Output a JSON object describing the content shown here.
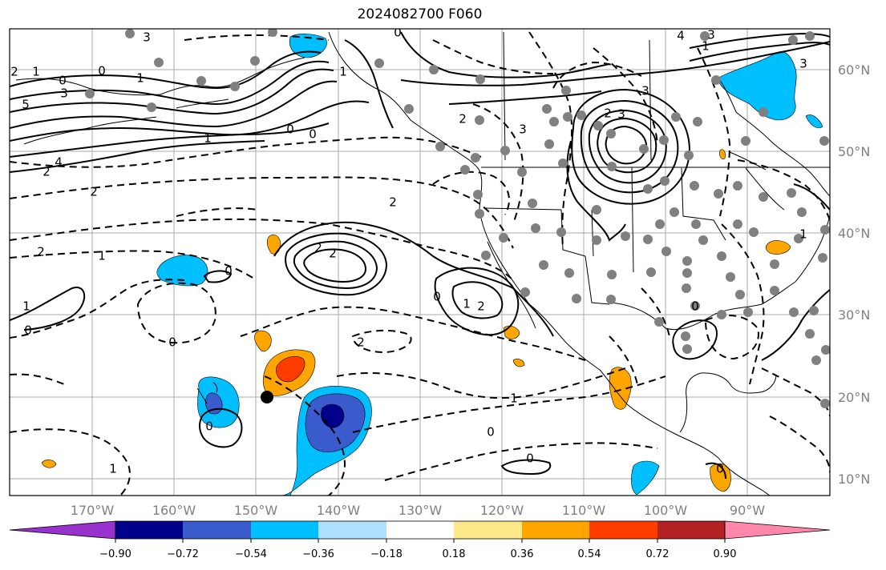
{
  "title": "2024082700 F060",
  "lat_labels": [
    "60°N",
    "50°N",
    "40°N",
    "30°N",
    "20°N",
    "10°N"
  ],
  "lon_labels": [
    "170°W",
    "160°W",
    "150°W",
    "140°W",
    "130°W",
    "120°W",
    "110°W",
    "100°W",
    "90°W"
  ],
  "colorbar": {
    "colors": [
      "#9932cc",
      "#00008b",
      "#3a5bcc",
      "#00bfff",
      "#aee0ff",
      "#ffffff",
      "#ffe88a",
      "#ffa500",
      "#ff3c00",
      "#b22222",
      "#ff88aa"
    ],
    "tick_labels": [
      "−0.90",
      "−0.72",
      "−0.54",
      "−0.36",
      "−0.18",
      "0.18",
      "0.36",
      "0.54",
      "0.72",
      "0.90"
    ]
  },
  "contour_labels": {
    "l1": "2",
    "l2": "1",
    "l3": "0",
    "l4": "3",
    "l5": "5",
    "l6": "4",
    "l7": "2",
    "l8": "3",
    "l9": "1",
    "l10": "0",
    "l11": "0",
    "l12": "1",
    "l13": "2",
    "l14": "2",
    "l15": "1",
    "l16": "2",
    "l17": "2",
    "l18": "0",
    "l19": "1",
    "l20": "2",
    "l21": "0",
    "l22": "0",
    "l23": "1",
    "l24": "0",
    "l25": "2",
    "l26": "0",
    "l27": "1",
    "l28": "0",
    "l29": "1",
    "l30": "0",
    "l31": "0",
    "l32": "0",
    "l33": "0",
    "l34": "2",
    "l35": "3",
    "l36": "3",
    "l37": "2",
    "l38": "3",
    "l39": "3",
    "l40": "1",
    "l41": "2",
    "l42": "4",
    "l43": "1",
    "l44": "3",
    "l45": "1",
    "l46": "0"
  }
}
